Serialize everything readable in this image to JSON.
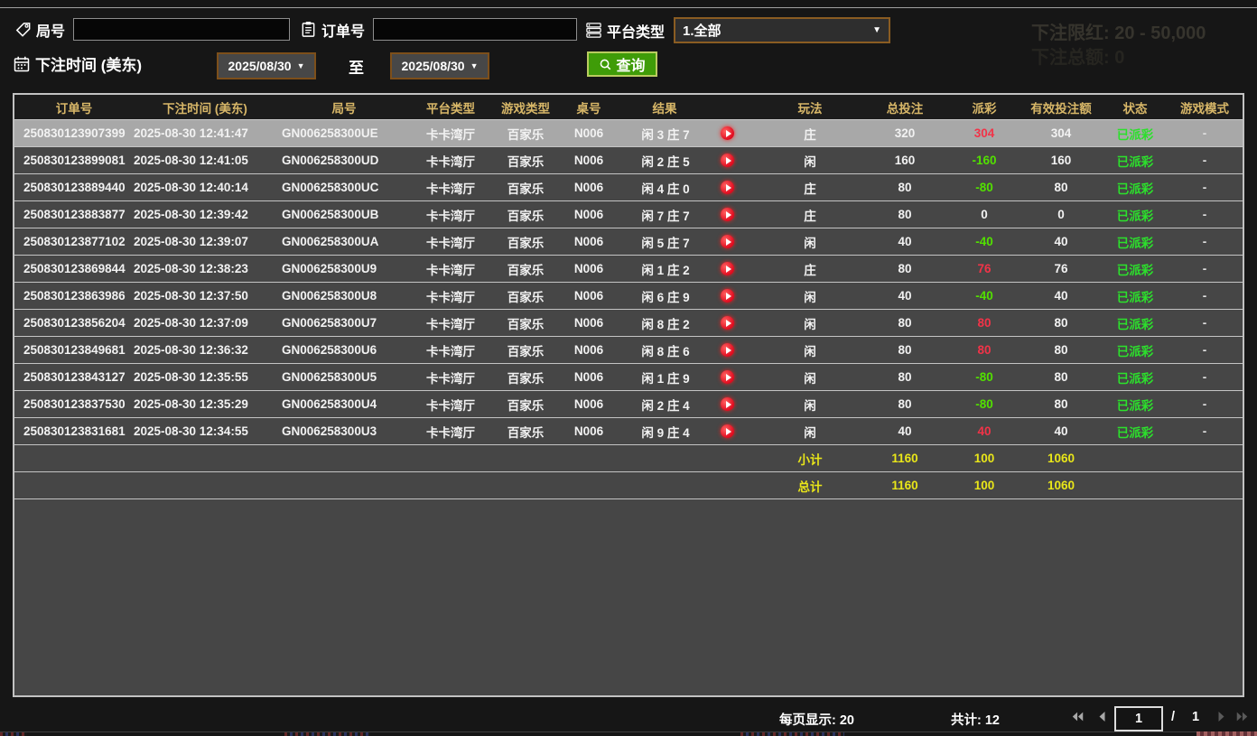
{
  "colors": {
    "header_gold": "#d8b768",
    "accent_green": "#3f9c08",
    "win_red": "#f23348",
    "loss_green": "#52e000",
    "status_green": "#2ce02c",
    "totals_yellow": "#e9e619",
    "selected_row_bg": "#a8a8a8"
  },
  "topbar": {
    "round_label": "局号",
    "round_value": "",
    "order_label": "订单号",
    "order_value": "",
    "platform_label": "平台类型",
    "platform_value": "1.全部",
    "bet_time_label": "下注时间 (美东)",
    "date_from": "2025/08/30",
    "to_label": "至",
    "date_to": "2025/08/30",
    "query_label": "查询"
  },
  "ghost": {
    "line1": "下注限红: 20 - 50,000",
    "line2": "下注总额: 0"
  },
  "table": {
    "headers": [
      "订单号",
      "下注时间 (美东)",
      "局号",
      "平台类型",
      "游戏类型",
      "桌号",
      "结果",
      "玩法",
      "总投注",
      "派彩",
      "有效投注额",
      "状态",
      "游戏模式"
    ],
    "rows": [
      {
        "order": "250830123907399",
        "time": "2025-08-30 12:41:47",
        "round": "GN006258300UE",
        "platform": "卡卡湾厅",
        "game_type": "百家乐",
        "table_no": "N006",
        "result": "闲 3 庄 7",
        "bet_on": "庄",
        "total_bet": "320",
        "payout": "304",
        "payout_color": "red",
        "valid_bet": "304",
        "status": "已派彩",
        "mode": "-",
        "selected": true
      },
      {
        "order": "250830123899081",
        "time": "2025-08-30 12:41:05",
        "round": "GN006258300UD",
        "platform": "卡卡湾厅",
        "game_type": "百家乐",
        "table_no": "N006",
        "result": "闲 2 庄 5",
        "bet_on": "闲",
        "total_bet": "160",
        "payout": "-160",
        "payout_color": "green",
        "valid_bet": "160",
        "status": "已派彩",
        "mode": "-",
        "selected": false
      },
      {
        "order": "250830123889440",
        "time": "2025-08-30 12:40:14",
        "round": "GN006258300UC",
        "platform": "卡卡湾厅",
        "game_type": "百家乐",
        "table_no": "N006",
        "result": "闲 4 庄 0",
        "bet_on": "庄",
        "total_bet": "80",
        "payout": "-80",
        "payout_color": "green",
        "valid_bet": "80",
        "status": "已派彩",
        "mode": "-",
        "selected": false
      },
      {
        "order": "250830123883877",
        "time": "2025-08-30 12:39:42",
        "round": "GN006258300UB",
        "platform": "卡卡湾厅",
        "game_type": "百家乐",
        "table_no": "N006",
        "result": "闲 7 庄 7",
        "bet_on": "庄",
        "total_bet": "80",
        "payout": "0",
        "payout_color": "white",
        "valid_bet": "0",
        "status": "已派彩",
        "mode": "-",
        "selected": false
      },
      {
        "order": "250830123877102",
        "time": "2025-08-30 12:39:07",
        "round": "GN006258300UA",
        "platform": "卡卡湾厅",
        "game_type": "百家乐",
        "table_no": "N006",
        "result": "闲 5 庄 7",
        "bet_on": "闲",
        "total_bet": "40",
        "payout": "-40",
        "payout_color": "green",
        "valid_bet": "40",
        "status": "已派彩",
        "mode": "-",
        "selected": false
      },
      {
        "order": "250830123869844",
        "time": "2025-08-30 12:38:23",
        "round": "GN006258300U9",
        "platform": "卡卡湾厅",
        "game_type": "百家乐",
        "table_no": "N006",
        "result": "闲 1 庄 2",
        "bet_on": "庄",
        "total_bet": "80",
        "payout": "76",
        "payout_color": "red",
        "valid_bet": "76",
        "status": "已派彩",
        "mode": "-",
        "selected": false
      },
      {
        "order": "250830123863986",
        "time": "2025-08-30 12:37:50",
        "round": "GN006258300U8",
        "platform": "卡卡湾厅",
        "game_type": "百家乐",
        "table_no": "N006",
        "result": "闲 6 庄 9",
        "bet_on": "闲",
        "total_bet": "40",
        "payout": "-40",
        "payout_color": "green",
        "valid_bet": "40",
        "status": "已派彩",
        "mode": "-",
        "selected": false
      },
      {
        "order": "250830123856204",
        "time": "2025-08-30 12:37:09",
        "round": "GN006258300U7",
        "platform": "卡卡湾厅",
        "game_type": "百家乐",
        "table_no": "N006",
        "result": "闲 8 庄 2",
        "bet_on": "闲",
        "total_bet": "80",
        "payout": "80",
        "payout_color": "red",
        "valid_bet": "80",
        "status": "已派彩",
        "mode": "-",
        "selected": false
      },
      {
        "order": "250830123849681",
        "time": "2025-08-30 12:36:32",
        "round": "GN006258300U6",
        "platform": "卡卡湾厅",
        "game_type": "百家乐",
        "table_no": "N006",
        "result": "闲 8 庄 6",
        "bet_on": "闲",
        "total_bet": "80",
        "payout": "80",
        "payout_color": "red",
        "valid_bet": "80",
        "status": "已派彩",
        "mode": "-",
        "selected": false
      },
      {
        "order": "250830123843127",
        "time": "2025-08-30 12:35:55",
        "round": "GN006258300U5",
        "platform": "卡卡湾厅",
        "game_type": "百家乐",
        "table_no": "N006",
        "result": "闲 1 庄 9",
        "bet_on": "闲",
        "total_bet": "80",
        "payout": "-80",
        "payout_color": "green",
        "valid_bet": "80",
        "status": "已派彩",
        "mode": "-",
        "selected": false
      },
      {
        "order": "250830123837530",
        "time": "2025-08-30 12:35:29",
        "round": "GN006258300U4",
        "platform": "卡卡湾厅",
        "game_type": "百家乐",
        "table_no": "N006",
        "result": "闲 2 庄 4",
        "bet_on": "闲",
        "total_bet": "80",
        "payout": "-80",
        "payout_color": "green",
        "valid_bet": "80",
        "status": "已派彩",
        "mode": "-",
        "selected": false
      },
      {
        "order": "250830123831681",
        "time": "2025-08-30 12:34:55",
        "round": "GN006258300U3",
        "platform": "卡卡湾厅",
        "game_type": "百家乐",
        "table_no": "N006",
        "result": "闲 9 庄 4",
        "bet_on": "闲",
        "total_bet": "40",
        "payout": "40",
        "payout_color": "red",
        "valid_bet": "40",
        "status": "已派彩",
        "mode": "-",
        "selected": false
      }
    ],
    "subtotal": {
      "label": "小计",
      "total_bet": "1160",
      "payout": "100",
      "valid_bet": "1060"
    },
    "total": {
      "label": "总计",
      "total_bet": "1160",
      "payout": "100",
      "valid_bet": "1060"
    }
  },
  "pagination": {
    "per_page": "每页显示: 20",
    "total_count": "共计: 12",
    "page": "1",
    "separator": "/",
    "total_pages": "1"
  }
}
